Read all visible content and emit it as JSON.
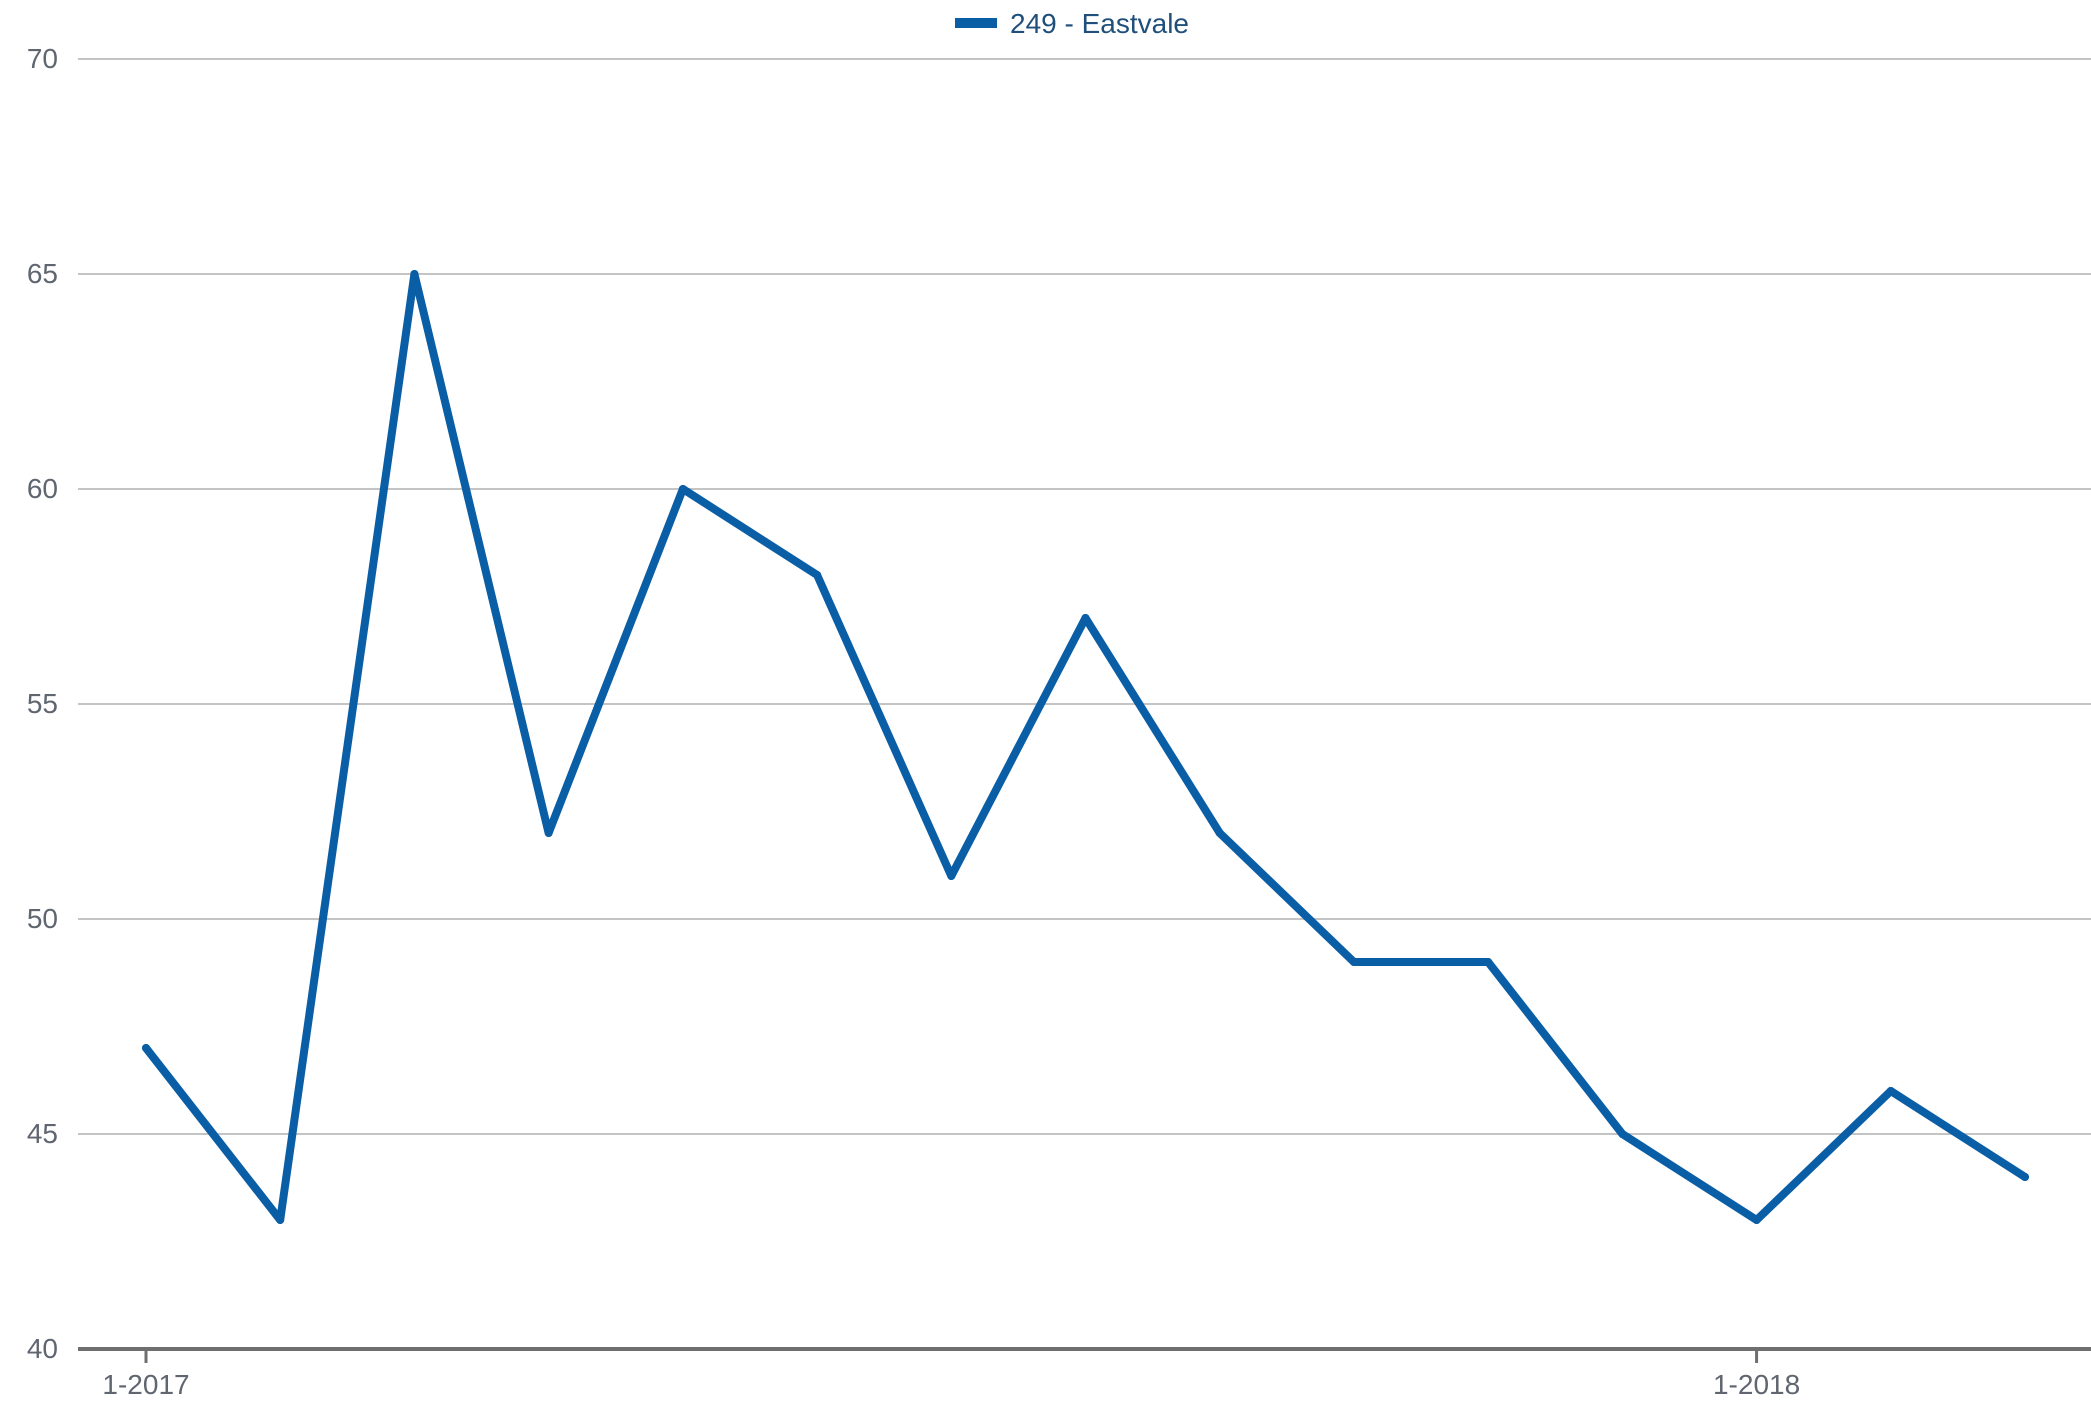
{
  "colors": {
    "series": "#0a5ea6",
    "grid": "#c4c4c4",
    "axis": "#6f6f6f",
    "tick_text": "#5f6670",
    "legend_text": "#1f4f7a"
  },
  "chart_data": {
    "type": "line",
    "legend_position": "top-center",
    "grid": true,
    "ylim": [
      40,
      70
    ],
    "y_ticks": [
      40,
      45,
      50,
      55,
      60,
      65,
      70
    ],
    "x": [
      "2017-01",
      "2017-02",
      "2017-03",
      "2017-04",
      "2017-05",
      "2017-06",
      "2017-07",
      "2017-08",
      "2017-09",
      "2017-10",
      "2017-11",
      "2017-12",
      "2018-01",
      "2018-02",
      "2018-03"
    ],
    "x_tick_labels": [
      {
        "x": "2017-01",
        "label": "1-2017"
      },
      {
        "x": "2018-01",
        "label": "1-2018"
      }
    ],
    "series": [
      {
        "name": "249 - Eastvale",
        "values": [
          47,
          43,
          65,
          52,
          60,
          58,
          51,
          57,
          52,
          49,
          49,
          45,
          43,
          46,
          44
        ]
      }
    ]
  }
}
